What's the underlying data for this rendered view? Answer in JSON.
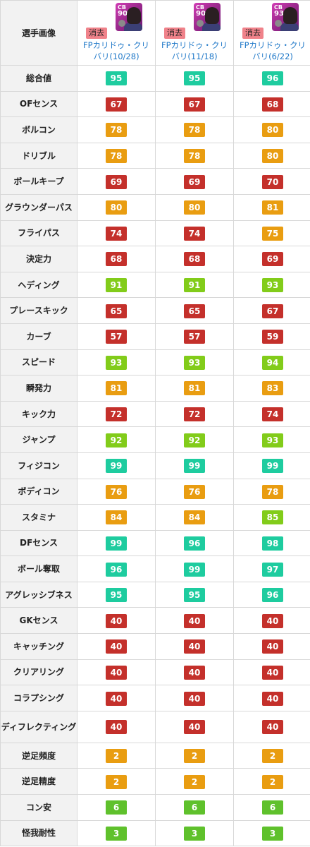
{
  "header": {
    "label": "選手画像",
    "delete_label": "消去",
    "players": [
      {
        "position": "CB",
        "rating": "90",
        "name": "FPカリドゥ・クリバリ(10/28)"
      },
      {
        "position": "CB",
        "rating": "90",
        "name": "FPカリドゥ・クリバリ(11/18)"
      },
      {
        "position": "CB",
        "rating": "93",
        "name": "FPカリドゥ・クリバリ(6/22)"
      }
    ]
  },
  "colors": {
    "teal": "#1ecc9f",
    "lime": "#82cc1a",
    "green": "#5fc12c",
    "orange": "#e99d11",
    "red": "#c4302b"
  },
  "rows": [
    {
      "label": "総合値",
      "values": [
        "95",
        "95",
        "96"
      ]
    },
    {
      "label": "OFセンス",
      "values": [
        "67",
        "67",
        "68"
      ]
    },
    {
      "label": "ボルコン",
      "values": [
        "78",
        "78",
        "80"
      ]
    },
    {
      "label": "ドリブル",
      "values": [
        "78",
        "78",
        "80"
      ]
    },
    {
      "label": "ボールキープ",
      "values": [
        "69",
        "69",
        "70"
      ]
    },
    {
      "label": "グラウンダーパス",
      "values": [
        "80",
        "80",
        "81"
      ]
    },
    {
      "label": "フライパス",
      "values": [
        "74",
        "74",
        "75"
      ]
    },
    {
      "label": "決定力",
      "values": [
        "68",
        "68",
        "69"
      ]
    },
    {
      "label": "ヘディング",
      "values": [
        "91",
        "91",
        "93"
      ]
    },
    {
      "label": "プレースキック",
      "values": [
        "65",
        "65",
        "67"
      ]
    },
    {
      "label": "カーブ",
      "values": [
        "57",
        "57",
        "59"
      ]
    },
    {
      "label": "スピード",
      "values": [
        "93",
        "93",
        "94"
      ]
    },
    {
      "label": "瞬発力",
      "values": [
        "81",
        "81",
        "83"
      ]
    },
    {
      "label": "キック力",
      "values": [
        "72",
        "72",
        "74"
      ]
    },
    {
      "label": "ジャンプ",
      "values": [
        "92",
        "92",
        "93"
      ]
    },
    {
      "label": "フィジコン",
      "values": [
        "99",
        "99",
        "99"
      ]
    },
    {
      "label": "ボディコン",
      "values": [
        "76",
        "76",
        "78"
      ]
    },
    {
      "label": "スタミナ",
      "values": [
        "84",
        "84",
        "85"
      ]
    },
    {
      "label": "DFセンス",
      "values": [
        "99",
        "96",
        "98"
      ]
    },
    {
      "label": "ボール奪取",
      "values": [
        "96",
        "99",
        "97"
      ]
    },
    {
      "label": "アグレッシブネス",
      "values": [
        "95",
        "95",
        "96"
      ]
    },
    {
      "label": "GKセンス",
      "values": [
        "40",
        "40",
        "40"
      ]
    },
    {
      "label": "キャッチング",
      "values": [
        "40",
        "40",
        "40"
      ]
    },
    {
      "label": "クリアリング",
      "values": [
        "40",
        "40",
        "40"
      ]
    },
    {
      "label": "コラプシング",
      "values": [
        "40",
        "40",
        "40"
      ]
    },
    {
      "label": "ディフレクティング",
      "values": [
        "40",
        "40",
        "40"
      ],
      "tall": true
    },
    {
      "label": "逆足頻度",
      "values": [
        "2",
        "2",
        "2"
      ],
      "small": true
    },
    {
      "label": "逆足精度",
      "values": [
        "2",
        "2",
        "2"
      ],
      "small": true
    },
    {
      "label": "コン安",
      "values": [
        "6",
        "6",
        "6"
      ],
      "small": true
    },
    {
      "label": "怪我耐性",
      "values": [
        "3",
        "3",
        "3"
      ],
      "small": true
    }
  ]
}
